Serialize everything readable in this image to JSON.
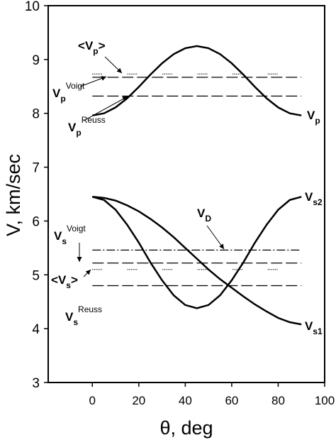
{
  "chart_data": {
    "type": "line",
    "xlabel": "θ, deg",
    "ylabel": "V, km/sec",
    "xlim": [
      -19,
      100
    ],
    "ylim": [
      3,
      10
    ],
    "xticks": [
      0,
      20,
      40,
      60,
      80,
      100
    ],
    "yticks": [
      3,
      4,
      5,
      6,
      7,
      8,
      9,
      10
    ],
    "series": [
      {
        "label": {
          "base": "V",
          "sub": "p"
        },
        "color": "#000000",
        "dash": "solid",
        "x": [
          0,
          5,
          10,
          15,
          20,
          25,
          30,
          35,
          40,
          45,
          50,
          55,
          60,
          65,
          70,
          75,
          80,
          85,
          90
        ],
        "values": [
          7.96,
          8.0,
          8.11,
          8.28,
          8.49,
          8.72,
          8.93,
          9.1,
          9.21,
          9.25,
          9.21,
          9.1,
          8.93,
          8.72,
          8.49,
          8.28,
          8.11,
          8.0,
          7.96
        ]
      },
      {
        "label": {
          "base": "V",
          "sub": "s1"
        },
        "color": "#000000",
        "dash": "solid",
        "x": [
          0,
          5,
          10,
          15,
          20,
          25,
          30,
          35,
          40,
          45,
          50,
          55,
          60,
          65,
          70,
          75,
          80,
          85,
          90
        ],
        "values": [
          6.45,
          6.43,
          6.38,
          6.29,
          6.18,
          6.04,
          5.88,
          5.7,
          5.5,
          5.3,
          5.1,
          4.92,
          4.76,
          4.6,
          4.45,
          4.32,
          4.2,
          4.12,
          4.08
        ]
      },
      {
        "label": {
          "base": "V",
          "sub": "s2"
        },
        "color": "#000000",
        "dash": "solid",
        "x": [
          0,
          5,
          10,
          15,
          20,
          25,
          30,
          35,
          40,
          45,
          50,
          55,
          60,
          65,
          70,
          75,
          80,
          85,
          90
        ],
        "values": [
          6.45,
          6.39,
          6.21,
          5.93,
          5.6,
          5.23,
          4.9,
          4.62,
          4.44,
          4.38,
          4.44,
          4.62,
          4.9,
          5.23,
          5.6,
          5.93,
          6.21,
          6.39,
          6.45
        ]
      },
      {
        "label": {
          "base": "V",
          "sub": "p",
          "sup": "Voigt"
        },
        "color": "#000000",
        "dash": "dashed",
        "x": [
          0,
          90
        ],
        "values": [
          8.67,
          8.67
        ]
      },
      {
        "label": {
          "pre": "<",
          "base": "V",
          "sub": "p",
          "post": ">"
        },
        "color": "#000000",
        "dash": "dotted",
        "x": [
          0,
          90
        ],
        "values": [
          8.73,
          8.73
        ]
      },
      {
        "label": {
          "base": "V",
          "sub": "p",
          "sup": "Reuss"
        },
        "color": "#000000",
        "dash": "dashed",
        "x": [
          0,
          90
        ],
        "values": [
          8.32,
          8.32
        ]
      },
      {
        "label": {
          "base": "V",
          "sub": "D"
        },
        "color": "#000000",
        "dash": "dashdot",
        "x": [
          0,
          90
        ],
        "values": [
          5.46,
          5.46
        ]
      },
      {
        "label": {
          "base": "V",
          "sub": "s",
          "sup": "Voigt"
        },
        "color": "#000000",
        "dash": "dashed",
        "x": [
          0,
          90
        ],
        "values": [
          5.22,
          5.22
        ]
      },
      {
        "label": {
          "pre": "<",
          "base": "V",
          "sub": "s",
          "post": ">"
        },
        "color": "#000000",
        "dash": "dotted",
        "x": [
          0,
          90
        ],
        "values": [
          5.1,
          5.1
        ]
      },
      {
        "label": {
          "base": "V",
          "sub": "s",
          "sup": "Reuss"
        },
        "color": "#000000",
        "dash": "dashed",
        "x": [
          0,
          90
        ],
        "values": [
          4.8,
          4.8
        ]
      }
    ]
  }
}
